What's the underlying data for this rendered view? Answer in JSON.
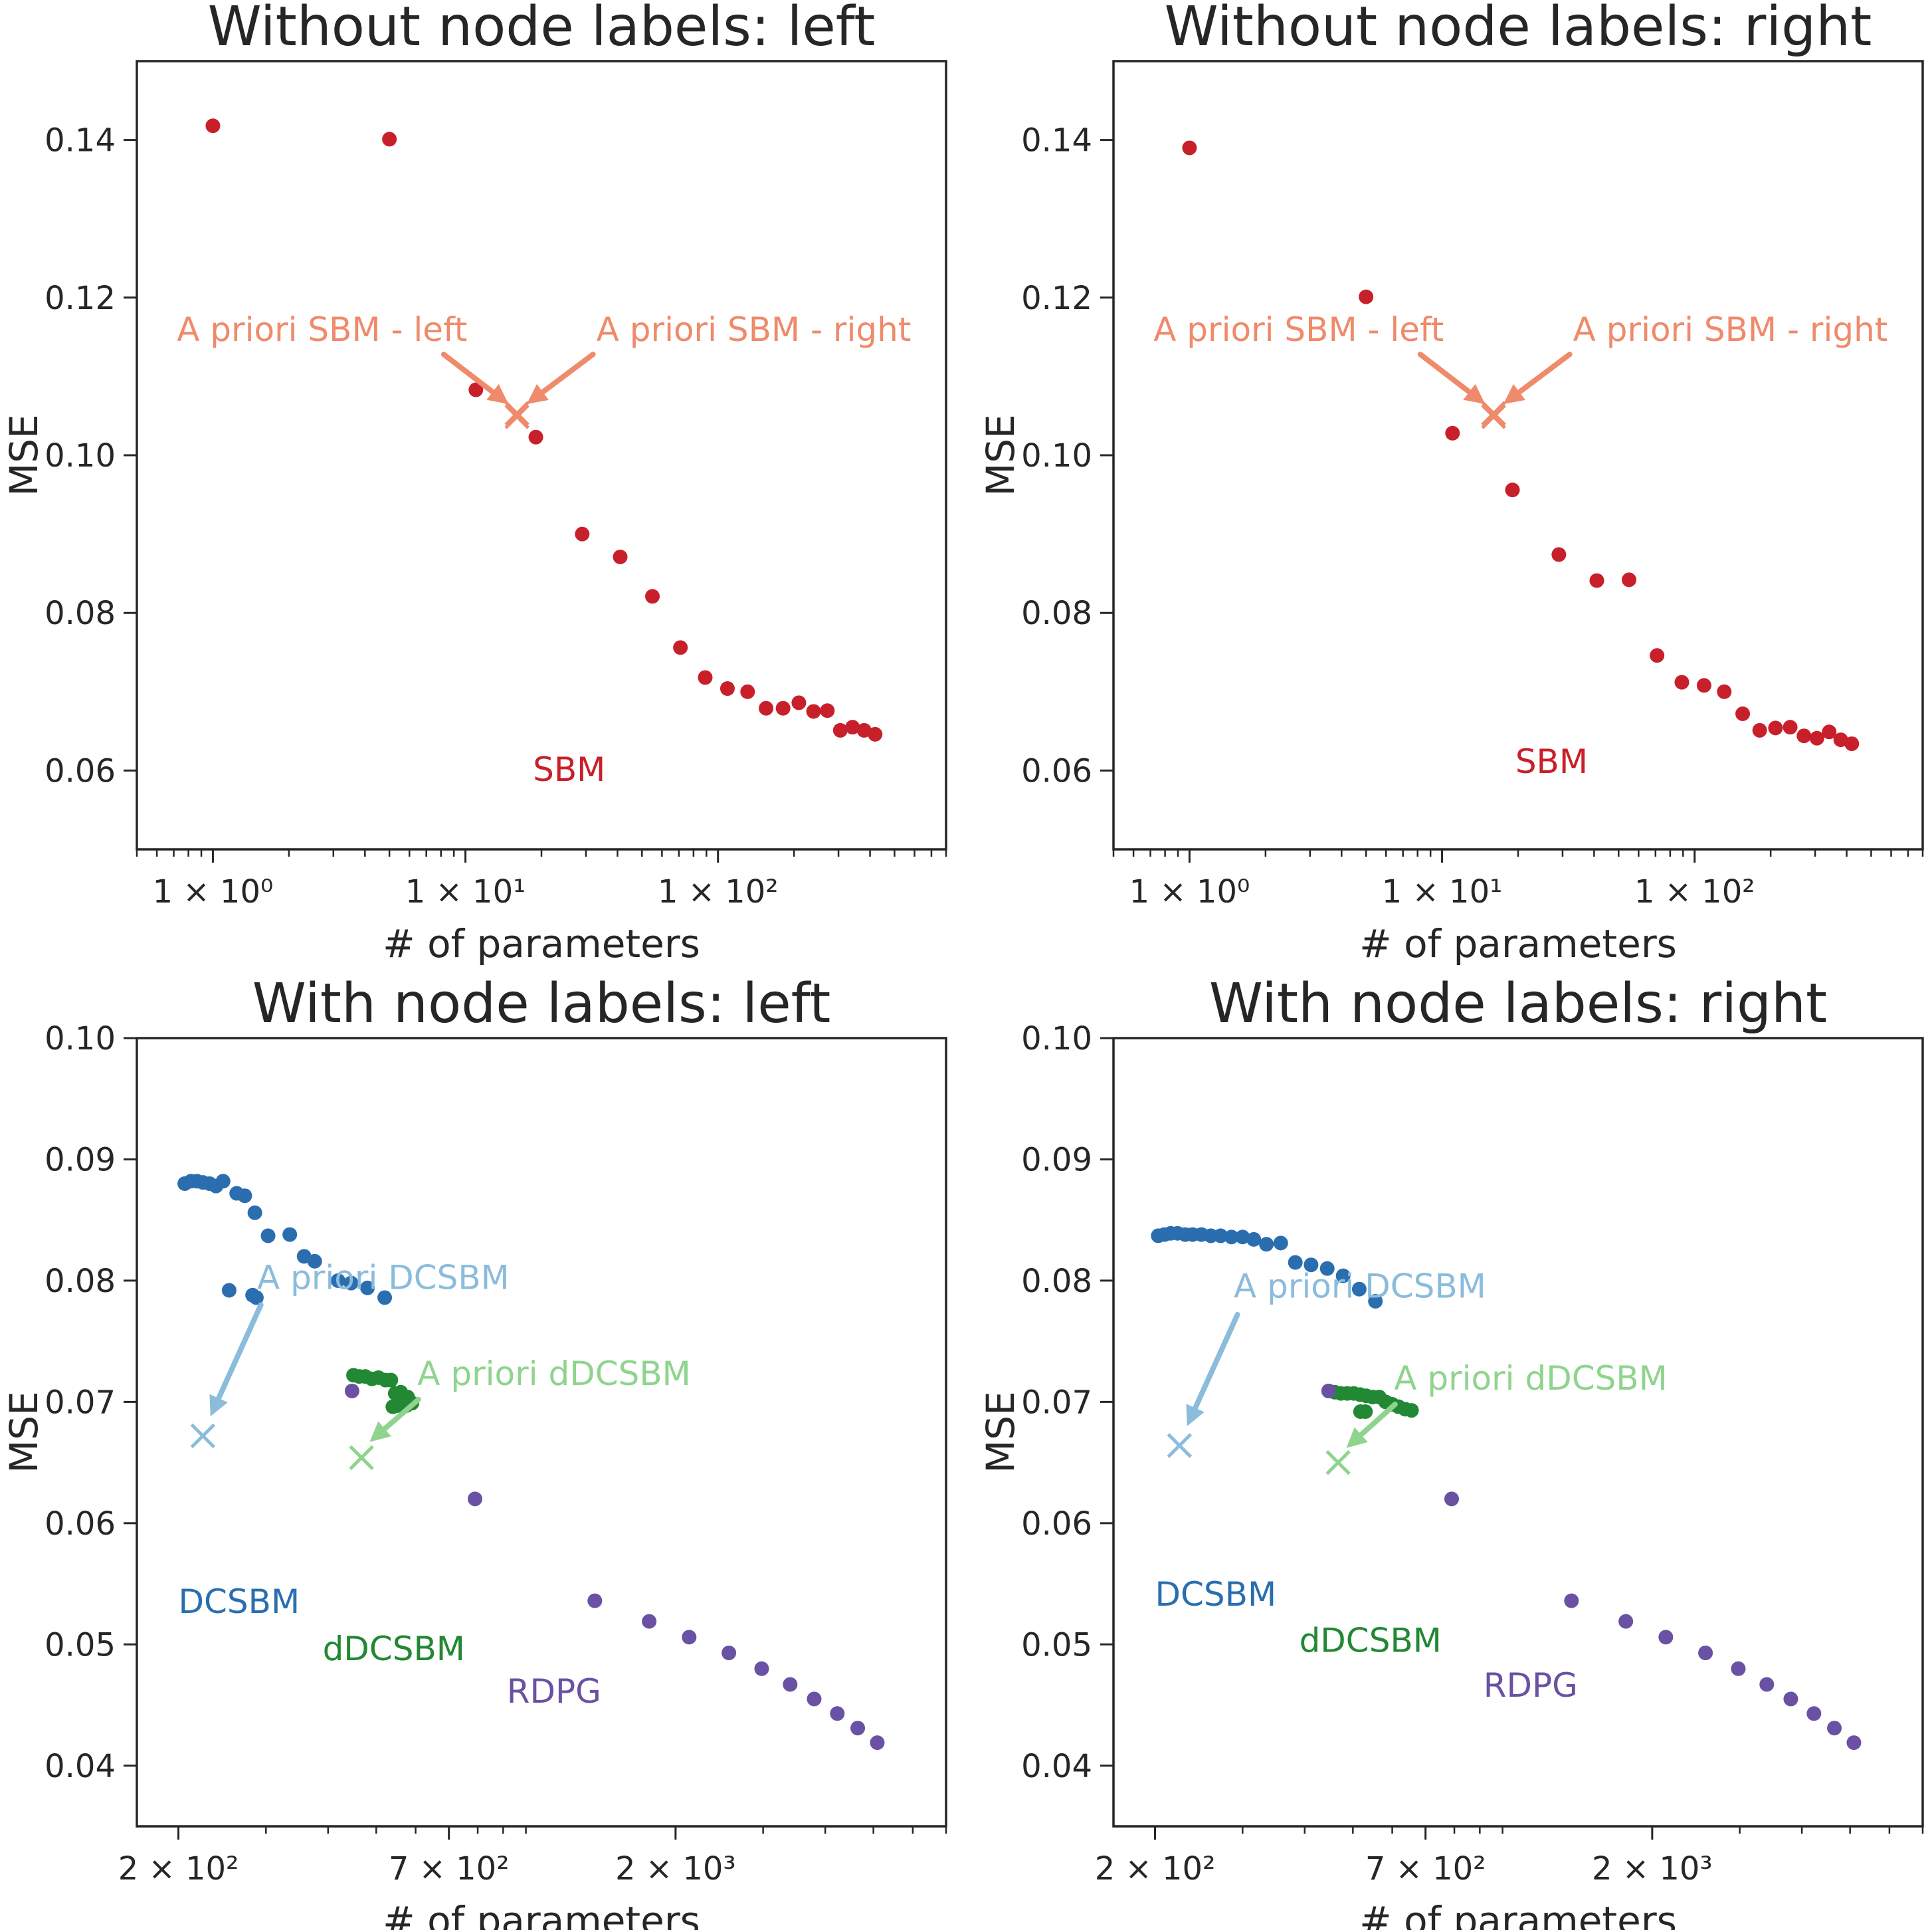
{
  "chart_data": [
    {
      "type": "scatter",
      "title": "Without node labels: left",
      "xlabel": "# of parameters",
      "ylabel": "MSE",
      "xscale": "log",
      "xlim": [
        0.5,
        800
      ],
      "ylim": [
        0.05,
        0.15
      ],
      "grid": false,
      "xticks": [
        {
          "value": 1,
          "label": "1 × 10⁰"
        },
        {
          "value": 10,
          "label": "1 × 10¹"
        },
        {
          "value": 100,
          "label": "1 × 10²"
        }
      ],
      "yticks": [
        {
          "value": 0.06,
          "label": "0.06"
        },
        {
          "value": 0.08,
          "label": "0.08"
        },
        {
          "value": 0.1,
          "label": "0.10"
        },
        {
          "value": 0.12,
          "label": "0.12"
        },
        {
          "value": 0.14,
          "label": "0.14"
        }
      ],
      "colors": {
        "SBM": "#c8202a",
        "apriori_sbm": "#ef8a6a"
      },
      "series": [
        {
          "name": "SBM",
          "color": "#c8202a",
          "marker": "circle",
          "x": [
            1,
            5,
            11,
            19,
            29,
            41,
            55,
            71,
            89,
            109,
            131,
            155,
            181,
            209,
            239,
            271,
            305,
            341,
            379,
            419
          ],
          "y": [
            0.1418,
            0.1401,
            0.1083,
            0.1023,
            0.09,
            0.0871,
            0.0821,
            0.0756,
            0.0718,
            0.0704,
            0.07,
            0.0679,
            0.0679,
            0.0686,
            0.0675,
            0.0676,
            0.0651,
            0.0655,
            0.0651,
            0.0646
          ]
        }
      ],
      "apriori_points": [
        {
          "x": 16,
          "y": 0.1053,
          "color": "#ef8a6a",
          "marker": "x"
        },
        {
          "x": 16,
          "y": 0.1049,
          "color": "#ef8a6a",
          "marker": "x"
        }
      ],
      "annotations": [
        {
          "text": "A priori SBM - left",
          "x": 0.72,
          "y": 0.1145,
          "color": "#ef8a6a",
          "arrow_from": [
            8.2,
            0.1128
          ],
          "arrow_to": [
            14.8,
            0.1065
          ]
        },
        {
          "text": "A priori SBM - right",
          "x": 33,
          "y": 0.1145,
          "color": "#ef8a6a",
          "arrow_from": [
            32,
            0.1128
          ],
          "arrow_to": [
            17.5,
            0.1065
          ]
        },
        {
          "text": "SBM",
          "x": 18.5,
          "y": 0.0587,
          "color": "#c8202a"
        }
      ]
    },
    {
      "type": "scatter",
      "title": "Without node labels: right",
      "xlabel": "# of parameters",
      "ylabel": "MSE",
      "xscale": "log",
      "xlim": [
        0.5,
        800
      ],
      "ylim": [
        0.05,
        0.15
      ],
      "grid": false,
      "xticks": [
        {
          "value": 1,
          "label": "1 × 10⁰"
        },
        {
          "value": 10,
          "label": "1 × 10¹"
        },
        {
          "value": 100,
          "label": "1 × 10²"
        }
      ],
      "yticks": [
        {
          "value": 0.06,
          "label": "0.06"
        },
        {
          "value": 0.08,
          "label": "0.08"
        },
        {
          "value": 0.1,
          "label": "0.10"
        },
        {
          "value": 0.12,
          "label": "0.12"
        },
        {
          "value": 0.14,
          "label": "0.14"
        }
      ],
      "colors": {
        "SBM": "#c8202a",
        "apriori_sbm": "#ef8a6a"
      },
      "series": [
        {
          "name": "SBM",
          "color": "#c8202a",
          "marker": "circle",
          "x": [
            1,
            5,
            11,
            19,
            29,
            41,
            55,
            71,
            89,
            109,
            131,
            155,
            181,
            209,
            239,
            271,
            305,
            341,
            379,
            419
          ],
          "y": [
            0.139,
            0.1201,
            0.1028,
            0.0956,
            0.0874,
            0.0841,
            0.0842,
            0.0746,
            0.0712,
            0.0708,
            0.07,
            0.0672,
            0.0651,
            0.0654,
            0.0655,
            0.0644,
            0.0641,
            0.0649,
            0.0639,
            0.0634
          ]
        }
      ],
      "apriori_points": [
        {
          "x": 16,
          "y": 0.1053,
          "color": "#ef8a6a",
          "marker": "x"
        },
        {
          "x": 16,
          "y": 0.1049,
          "color": "#ef8a6a",
          "marker": "x"
        }
      ],
      "annotations": [
        {
          "text": "A priori SBM - left",
          "x": 0.72,
          "y": 0.1145,
          "color": "#ef8a6a",
          "arrow_from": [
            8.2,
            0.1128
          ],
          "arrow_to": [
            14.8,
            0.1065
          ]
        },
        {
          "text": "A priori SBM - right",
          "x": 33,
          "y": 0.1145,
          "color": "#ef8a6a",
          "arrow_from": [
            32,
            0.1128
          ],
          "arrow_to": [
            17.5,
            0.1065
          ]
        },
        {
          "text": "SBM",
          "x": 19.5,
          "y": 0.0597,
          "color": "#c8202a"
        }
      ]
    },
    {
      "type": "scatter",
      "title": "With node labels: left",
      "xlabel": "# of parameters",
      "ylabel": "MSE",
      "xscale": "log",
      "xlim": [
        165,
        7000
      ],
      "ylim": [
        0.035,
        0.1
      ],
      "grid": false,
      "xticks": [
        {
          "value": 200,
          "label": "2 × 10²"
        },
        {
          "value": 700,
          "label": "7 × 10²"
        },
        {
          "value": 2000,
          "label": "2 × 10³"
        }
      ],
      "yticks": [
        {
          "value": 0.04,
          "label": "0.04"
        },
        {
          "value": 0.05,
          "label": "0.05"
        },
        {
          "value": 0.06,
          "label": "0.06"
        },
        {
          "value": 0.07,
          "label": "0.07"
        },
        {
          "value": 0.08,
          "label": "0.08"
        },
        {
          "value": 0.09,
          "label": "0.09"
        },
        {
          "value": 0.1,
          "label": "0.10"
        }
      ],
      "colors": {
        "DCSBM": "#2a6eb0",
        "dDCSBM": "#228833",
        "RDPG": "#6a51a3",
        "apriori_dcsbm": "#8bbcdc",
        "apriori_ddcsbm": "#8fd48e"
      },
      "series": [
        {
          "name": "DCSBM",
          "color": "#2a6eb0",
          "marker": "circle",
          "x": [
            206,
            212,
            218,
            224,
            231,
            238,
            246,
            253,
            262,
            272,
            282,
            285,
            287,
            303,
            335,
            358,
            376,
            419,
            445,
            480,
            520
          ],
          "y": [
            0.088,
            0.0882,
            0.0882,
            0.0881,
            0.088,
            0.0878,
            0.0882,
            0.0792,
            0.0872,
            0.087,
            0.0788,
            0.0856,
            0.0786,
            0.0837,
            0.0838,
            0.082,
            0.0816,
            0.08,
            0.0798,
            0.0794,
            0.0786
          ]
        },
        {
          "name": "dDCSBM",
          "color": "#228833",
          "marker": "circle",
          "x": [
            450,
            462,
            475,
            490,
            505,
            522,
            535,
            546,
            560,
            578,
            590,
            540,
            552,
            563,
            575
          ],
          "y": [
            0.0722,
            0.0721,
            0.0721,
            0.0719,
            0.072,
            0.0718,
            0.0718,
            0.0707,
            0.0708,
            0.0704,
            0.0699,
            0.0696,
            0.0697,
            0.0699,
            0.0697
          ]
        },
        {
          "name": "RDPG",
          "color": "#6a51a3",
          "marker": "circle",
          "x": [
            447,
            790,
            1376,
            1770,
            2130,
            2560,
            2980,
            3400,
            3800,
            4230,
            4650,
            5090
          ],
          "y": [
            0.0709,
            0.062,
            0.0536,
            0.0519,
            0.0506,
            0.0493,
            0.048,
            0.0467,
            0.0455,
            0.0443,
            0.0431,
            0.0419
          ]
        }
      ],
      "apriori_points": [
        {
          "x": 224,
          "y": 0.0672,
          "color": "#8bbcdc",
          "marker": "x"
        },
        {
          "x": 467,
          "y": 0.0654,
          "color": "#8fd48e",
          "marker": "x"
        }
      ],
      "annotations": [
        {
          "text": "A priori DCSBM",
          "x": 288,
          "y": 0.0793,
          "color": "#8bbcdc",
          "arrow_from": [
            293,
            0.078
          ],
          "arrow_to": [
            232,
            0.0688
          ]
        },
        {
          "text": "A priori dDCSBM",
          "x": 605,
          "y": 0.0714,
          "color": "#8fd48e",
          "arrow_from": [
            608,
            0.0702
          ],
          "arrow_to": [
            485,
            0.0667
          ]
        },
        {
          "text": "DCSBM",
          "x": 200,
          "y": 0.0526,
          "color": "#2a6eb0"
        },
        {
          "text": "dDCSBM",
          "x": 390,
          "y": 0.0487,
          "color": "#228833"
        },
        {
          "text": "RDPG",
          "x": 915,
          "y": 0.0452,
          "color": "#6a51a3"
        }
      ]
    },
    {
      "type": "scatter",
      "title": "With node labels: right",
      "xlabel": "# of parameters",
      "ylabel": "MSE",
      "xscale": "log",
      "xlim": [
        165,
        7000
      ],
      "ylim": [
        0.035,
        0.1
      ],
      "grid": false,
      "xticks": [
        {
          "value": 200,
          "label": "2 × 10²"
        },
        {
          "value": 700,
          "label": "7 × 10²"
        },
        {
          "value": 2000,
          "label": "2 × 10³"
        }
      ],
      "yticks": [
        {
          "value": 0.04,
          "label": "0.04"
        },
        {
          "value": 0.05,
          "label": "0.05"
        },
        {
          "value": 0.06,
          "label": "0.06"
        },
        {
          "value": 0.07,
          "label": "0.07"
        },
        {
          "value": 0.08,
          "label": "0.08"
        },
        {
          "value": 0.09,
          "label": "0.09"
        },
        {
          "value": 0.1,
          "label": "0.10"
        }
      ],
      "colors": {
        "DCSBM": "#2a6eb0",
        "dDCSBM": "#228833",
        "RDPG": "#6a51a3",
        "apriori_dcsbm": "#8bbcdc",
        "apriori_ddcsbm": "#8fd48e"
      },
      "series": [
        {
          "name": "DCSBM",
          "color": "#2a6eb0",
          "marker": "circle",
          "x": [
            203,
            209,
            215,
            222,
            230,
            238,
            248,
            259,
            271,
            285,
            300,
            316,
            335,
            358,
            383,
            412,
            444,
            478,
            515,
            555
          ],
          "y": [
            0.0837,
            0.0838,
            0.0839,
            0.0839,
            0.0838,
            0.0838,
            0.0838,
            0.0837,
            0.0837,
            0.0836,
            0.0836,
            0.0834,
            0.083,
            0.0831,
            0.0815,
            0.0813,
            0.081,
            0.0804,
            0.0793,
            0.0783
          ]
        },
        {
          "name": "dDCSBM",
          "color": "#228833",
          "marker": "circle",
          "x": [
            447,
            460,
            473,
            487,
            502,
            517,
            532,
            548,
            565,
            582,
            600,
            618,
            637,
            656,
            518,
            530
          ],
          "y": [
            0.0709,
            0.0708,
            0.0707,
            0.0707,
            0.0707,
            0.0706,
            0.0705,
            0.0704,
            0.0704,
            0.07,
            0.0698,
            0.0696,
            0.0694,
            0.0693,
            0.0692,
            0.0692
          ]
        },
        {
          "name": "RDPG",
          "color": "#6a51a3",
          "marker": "circle",
          "x": [
            447,
            790,
            1376,
            1770,
            2130,
            2560,
            2980,
            3400,
            3800,
            4230,
            4650,
            5090
          ],
          "y": [
            0.0709,
            0.062,
            0.0536,
            0.0519,
            0.0506,
            0.0493,
            0.048,
            0.0467,
            0.0455,
            0.0443,
            0.0431,
            0.0419
          ]
        }
      ],
      "apriori_points": [
        {
          "x": 224,
          "y": 0.0664,
          "color": "#8bbcdc",
          "marker": "x"
        },
        {
          "x": 467,
          "y": 0.065,
          "color": "#8fd48e",
          "marker": "x"
        }
      ],
      "annotations": [
        {
          "text": "A priori DCSBM",
          "x": 288,
          "y": 0.0786,
          "color": "#8bbcdc",
          "arrow_from": [
            293,
            0.0772
          ],
          "arrow_to": [
            232,
            0.068
          ]
        },
        {
          "text": "A priori dDCSBM",
          "x": 605,
          "y": 0.071,
          "color": "#8fd48e",
          "arrow_from": [
            608,
            0.0698
          ],
          "arrow_to": [
            485,
            0.0662
          ]
        },
        {
          "text": "DCSBM",
          "x": 200,
          "y": 0.0532,
          "color": "#2a6eb0"
        },
        {
          "text": "dDCSBM",
          "x": 390,
          "y": 0.0494,
          "color": "#228833"
        },
        {
          "text": "RDPG",
          "x": 915,
          "y": 0.0457,
          "color": "#6a51a3"
        }
      ]
    }
  ]
}
